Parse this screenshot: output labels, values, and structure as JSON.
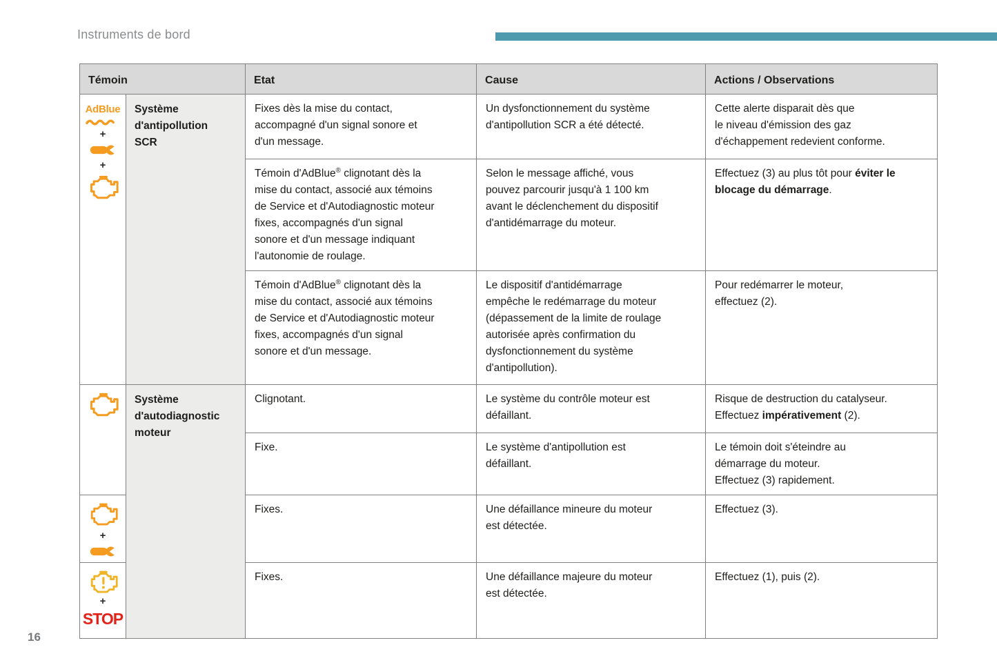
{
  "page": {
    "title": "Instruments de bord",
    "page_number": "16",
    "accent_color": "#4d9aaf"
  },
  "colors": {
    "icon_orange": "#f49b20",
    "icon_yellow": "#f0b428",
    "stop_red": "#e2231a",
    "header_bg": "#d9d9d9",
    "label_bg": "#ececeb",
    "border": "#818181"
  },
  "icons": {
    "adblue_label": "AdBlue",
    "plus": "+",
    "stop_label": "STOP",
    "wrench": "wrench-icon",
    "engine": "engine-icon",
    "engine_warning": "engine-warning-icon"
  },
  "table": {
    "headers": {
      "temoin": "Témoin",
      "etat": "Etat",
      "cause": "Cause",
      "actions": "Actions / Observations"
    },
    "group1_label": "Système\nd'antipollution\nSCR",
    "group2_label": "Système\nd'autodiagnostic\nmoteur",
    "rows": {
      "r1": {
        "etat": "Fixes dès la mise du contact,\naccompagné d'un signal sonore et\nd'un message.",
        "cause": "Un dysfonctionnement du système\nd'antipollution SCR a été détecté.",
        "actions": "Cette alerte disparait dès que\nle niveau d'émission des gaz\nd'échappement redevient conforme."
      },
      "r2": {
        "etat": [
          {
            "t": "Témoin d'AdBlue"
          },
          {
            "t": "®",
            "sup": true
          },
          {
            "t": " clignotant dès la\nmise du contact, associé aux témoins\nde Service et d'Autodiagnostic moteur\nfixes, accompagnés d'un signal\nsonore et d'un message indiquant\nl'autonomie de roulage."
          }
        ],
        "cause": "Selon le message affiché, vous\npouvez parcourir jusqu'à 1 100 km\navant le déclenchement du dispositif\nd'antidémarrage du moteur.",
        "actions": [
          {
            "t": "Effectuez (3) au plus tôt pour "
          },
          {
            "t": "éviter le\nblocage du démarrage",
            "b": true
          },
          {
            "t": "."
          }
        ]
      },
      "r3": {
        "etat": [
          {
            "t": "Témoin d'AdBlue"
          },
          {
            "t": "®",
            "sup": true
          },
          {
            "t": " clignotant dès la\nmise du contact, associé aux témoins\nde Service et d'Autodiagnostic moteur\nfixes, accompagnés d'un signal\nsonore et d'un message."
          }
        ],
        "cause": "Le dispositif d'antidémarrage\nempêche le redémarrage du moteur\n(dépassement de la limite de roulage\nautorisée après confirmation du\ndysfonctionnement du système\nd'antipollution).",
        "actions": "Pour redémarrer le moteur,\neffectuez (2)."
      },
      "r4": {
        "etat": "Clignotant.",
        "cause": "Le système du contrôle moteur est\ndéfaillant.",
        "actions": [
          {
            "t": "Risque de destruction du catalyseur.\nEffectuez "
          },
          {
            "t": "impérativement",
            "b": true
          },
          {
            "t": " (2)."
          }
        ]
      },
      "r5": {
        "etat": "Fixe.",
        "cause": "Le système d'antipollution est\ndéfaillant.",
        "actions": "Le témoin doit s'éteindre au\ndémarrage du moteur.\nEffectuez (3) rapidement."
      },
      "r6": {
        "etat": "Fixes.",
        "cause": "Une défaillance mineure du moteur\nest détectée.",
        "actions": "Effectuez (3)."
      },
      "r7": {
        "etat": "Fixes.",
        "cause": "Une défaillance majeure du moteur\nest détectée.",
        "actions": "Effectuez (1), puis (2)."
      }
    }
  }
}
